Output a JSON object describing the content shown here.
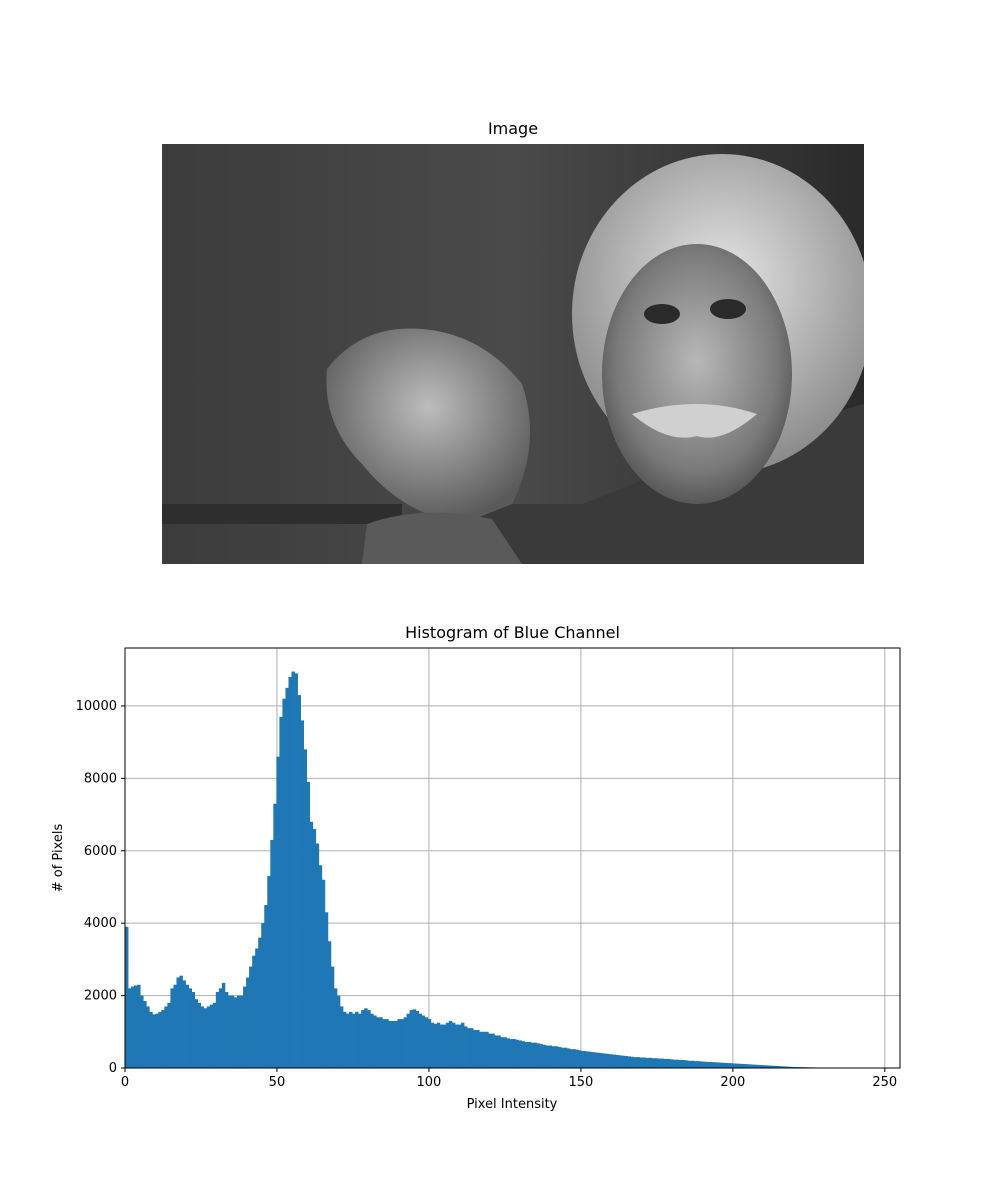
{
  "image_panel": {
    "title": "Image"
  },
  "chart_data": {
    "type": "bar",
    "title": "Histogram of Blue Channel",
    "xlabel": "Pixel Intensity",
    "ylabel": "# of Pixels",
    "xlim": [
      0,
      255
    ],
    "ylim": [
      0,
      11600
    ],
    "xticks": [
      0,
      50,
      100,
      150,
      200,
      250
    ],
    "yticks": [
      0,
      2000,
      4000,
      6000,
      8000,
      10000
    ],
    "grid": true,
    "bar_color": "#1f77b4",
    "bins": 256,
    "values": [
      3900,
      2200,
      2250,
      2280,
      2300,
      2000,
      1850,
      1700,
      1550,
      1480,
      1500,
      1550,
      1600,
      1700,
      1800,
      2200,
      2300,
      2500,
      2550,
      2420,
      2300,
      2200,
      2100,
      1900,
      1800,
      1700,
      1650,
      1700,
      1750,
      1800,
      2100,
      2200,
      2350,
      2100,
      2000,
      2000,
      1950,
      2000,
      2000,
      2250,
      2500,
      2800,
      3100,
      3300,
      3600,
      4000,
      4500,
      5300,
      6300,
      7300,
      8600,
      9700,
      10200,
      10500,
      10800,
      10950,
      10900,
      10300,
      9600,
      8800,
      7900,
      6800,
      6600,
      6200,
      5600,
      5200,
      4300,
      3500,
      2800,
      2200,
      2000,
      1700,
      1550,
      1500,
      1550,
      1500,
      1550,
      1500,
      1600,
      1650,
      1600,
      1500,
      1450,
      1400,
      1400,
      1350,
      1350,
      1300,
      1300,
      1300,
      1350,
      1350,
      1400,
      1500,
      1600,
      1620,
      1580,
      1500,
      1450,
      1400,
      1350,
      1250,
      1220,
      1250,
      1200,
      1200,
      1250,
      1300,
      1250,
      1200,
      1200,
      1250,
      1150,
      1100,
      1100,
      1050,
      1050,
      1000,
      1000,
      1000,
      950,
      950,
      900,
      900,
      850,
      850,
      820,
      800,
      800,
      780,
      760,
      740,
      720,
      720,
      700,
      700,
      680,
      660,
      640,
      620,
      620,
      600,
      600,
      580,
      560,
      560,
      540,
      520,
      520,
      500,
      480,
      470,
      460,
      450,
      440,
      430,
      420,
      410,
      400,
      390,
      380,
      370,
      360,
      350,
      340,
      330,
      320,
      310,
      300,
      300,
      290,
      290,
      280,
      280,
      270,
      270,
      260,
      260,
      250,
      250,
      240,
      230,
      230,
      220,
      220,
      210,
      200,
      200,
      190,
      190,
      180,
      175,
      170,
      165,
      160,
      155,
      150,
      145,
      140,
      135,
      130,
      125,
      120,
      115,
      110,
      105,
      100,
      95,
      90,
      85,
      80,
      75,
      70,
      65,
      60,
      55,
      50,
      45,
      40,
      35,
      30,
      28,
      26,
      24,
      22,
      20,
      18,
      16,
      14,
      12,
      10,
      9,
      8,
      7,
      6,
      5,
      4,
      3,
      2,
      1,
      1,
      1,
      0,
      0,
      0,
      0,
      0,
      0,
      0,
      0,
      0,
      0,
      0,
      0,
      0,
      0
    ]
  }
}
